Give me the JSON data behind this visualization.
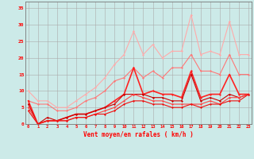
{
  "title": "",
  "xlabel": "Vent moyen/en rafales ( km/h )",
  "ylabel": "",
  "bg_color": "#cceae8",
  "grid_color": "#aaaaaa",
  "x_ticks": [
    0,
    1,
    2,
    3,
    4,
    5,
    6,
    7,
    8,
    9,
    10,
    11,
    12,
    13,
    14,
    15,
    16,
    17,
    18,
    19,
    20,
    21,
    22,
    23
  ],
  "ylim": [
    0,
    37
  ],
  "xlim": [
    -0.3,
    23.3
  ],
  "yticks": [
    0,
    5,
    10,
    15,
    20,
    25,
    30,
    35
  ],
  "series": [
    {
      "color": "#ffaaaa",
      "lw": 0.8,
      "data_x": [
        0,
        1,
        2,
        3,
        4,
        5,
        6,
        7,
        8,
        9,
        10,
        11,
        12,
        13,
        14,
        15,
        16,
        17,
        18,
        19,
        20,
        21,
        22,
        23
      ],
      "data_y": [
        10,
        7,
        7,
        5,
        5,
        7,
        9,
        11,
        14,
        18,
        21,
        28,
        21,
        24,
        20,
        22,
        22,
        33,
        21,
        22,
        21,
        31,
        21,
        21
      ]
    },
    {
      "color": "#ff7777",
      "lw": 0.8,
      "data_x": [
        0,
        1,
        2,
        3,
        4,
        5,
        6,
        7,
        8,
        9,
        10,
        11,
        12,
        13,
        14,
        15,
        16,
        17,
        18,
        19,
        20,
        21,
        22,
        23
      ],
      "data_y": [
        7,
        6,
        6,
        4,
        4,
        5,
        7,
        8,
        10,
        13,
        14,
        17,
        14,
        16,
        14,
        17,
        17,
        21,
        16,
        16,
        15,
        21,
        15,
        15
      ]
    },
    {
      "color": "#ff2222",
      "lw": 1.2,
      "data_x": [
        0,
        1,
        2,
        3,
        4,
        5,
        6,
        7,
        8,
        9,
        10,
        11,
        12,
        13,
        14,
        15,
        16,
        17,
        18,
        19,
        20,
        21,
        22,
        23
      ],
      "data_y": [
        7,
        0,
        1,
        1,
        2,
        3,
        3,
        4,
        5,
        7,
        9,
        17,
        9,
        10,
        9,
        9,
        8,
        16,
        8,
        9,
        9,
        15,
        9,
        9
      ]
    },
    {
      "color": "#cc0000",
      "lw": 0.8,
      "data_x": [
        0,
        1,
        2,
        3,
        4,
        5,
        6,
        7,
        8,
        9,
        10,
        11,
        12,
        13,
        14,
        15,
        16,
        17,
        18,
        19,
        20,
        21,
        22,
        23
      ],
      "data_y": [
        6,
        0,
        2,
        1,
        2,
        3,
        3,
        4,
        5,
        6,
        9,
        9,
        9,
        8,
        8,
        7,
        7,
        15,
        7,
        8,
        7,
        9,
        8,
        9
      ]
    },
    {
      "color": "#ff4444",
      "lw": 0.8,
      "data_x": [
        0,
        1,
        2,
        3,
        4,
        5,
        6,
        7,
        8,
        9,
        10,
        11,
        12,
        13,
        14,
        15,
        16,
        17,
        18,
        19,
        20,
        21,
        22,
        23
      ],
      "data_y": [
        5,
        0,
        1,
        1,
        1,
        2,
        2,
        3,
        4,
        5,
        7,
        9,
        8,
        7,
        7,
        6,
        6,
        6,
        6,
        7,
        6,
        8,
        8,
        9
      ]
    },
    {
      "color": "#ee1111",
      "lw": 0.8,
      "data_x": [
        0,
        1,
        2,
        3,
        4,
        5,
        6,
        7,
        8,
        9,
        10,
        11,
        12,
        13,
        14,
        15,
        16,
        17,
        18,
        19,
        20,
        21,
        22,
        23
      ],
      "data_y": [
        4,
        0,
        1,
        1,
        1,
        2,
        2,
        3,
        3,
        4,
        6,
        7,
        7,
        6,
        6,
        5,
        5,
        6,
        5,
        6,
        6,
        7,
        7,
        9
      ]
    }
  ],
  "marker": "D",
  "markersize": 1.5
}
